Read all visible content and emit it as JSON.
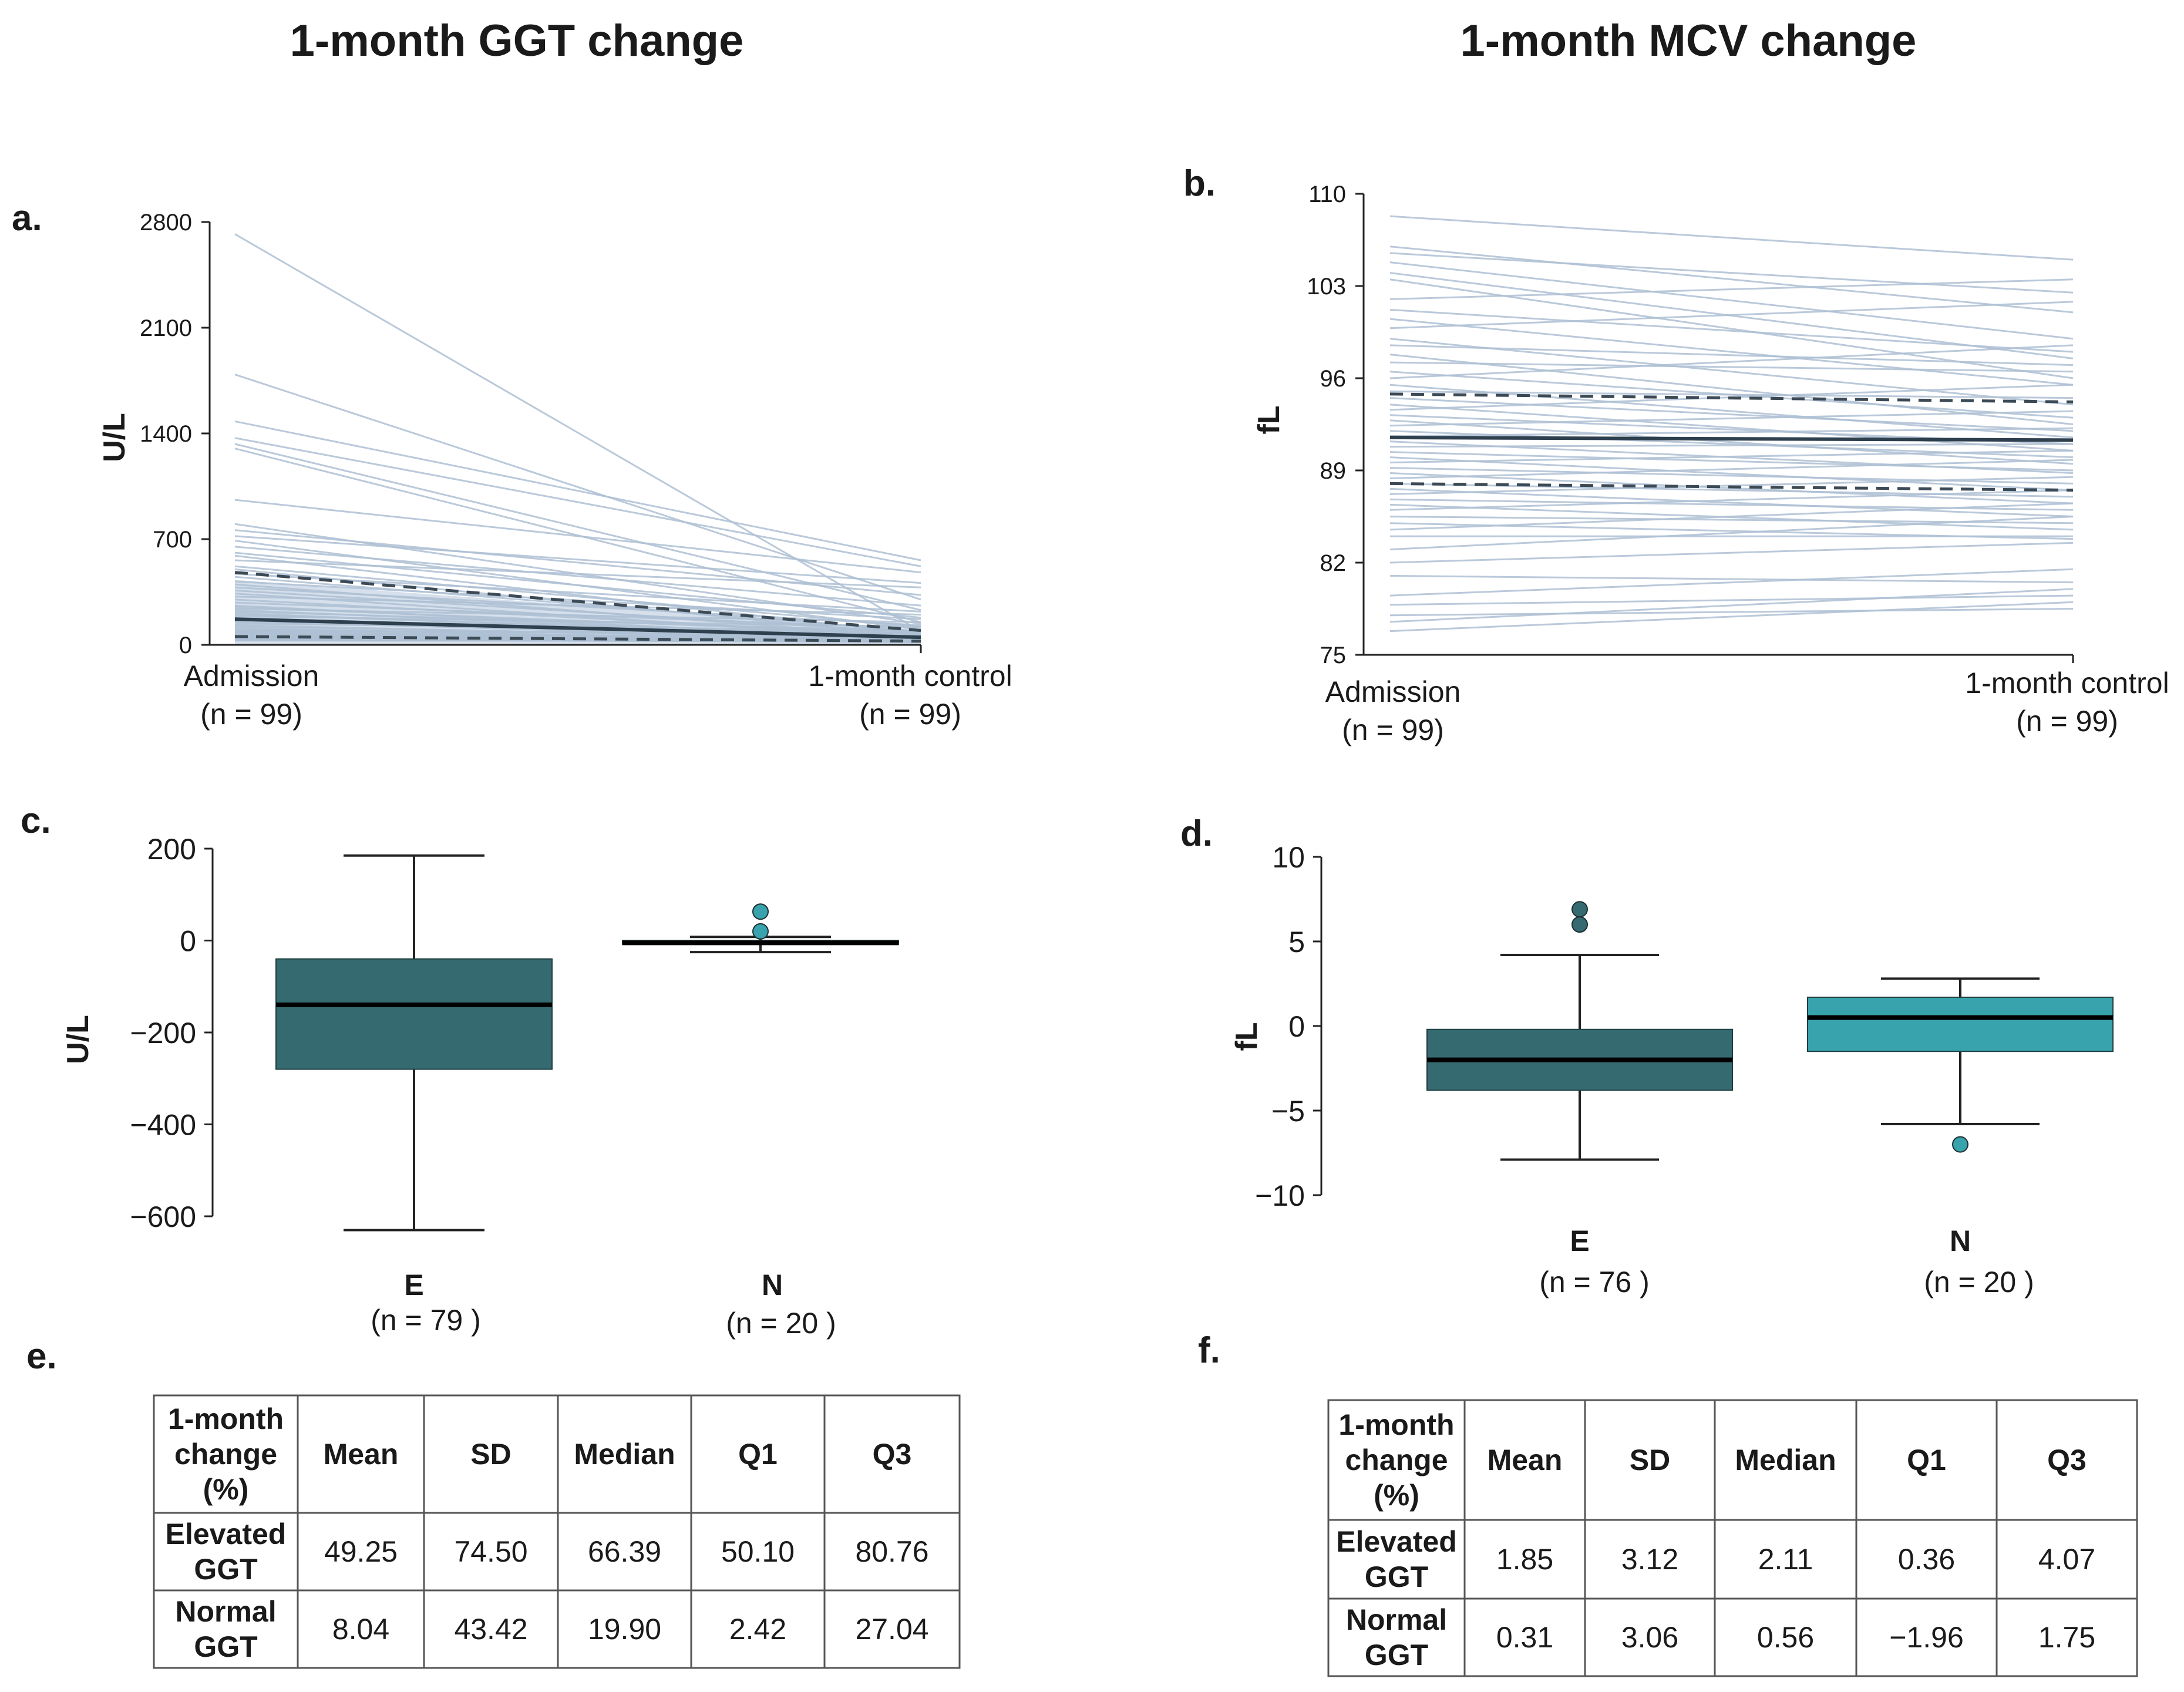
{
  "titles": {
    "left": "1-month GGT change",
    "right": "1-month MCV change"
  },
  "panels": {
    "a": "a.",
    "b": "b.",
    "c": "c.",
    "d": "d.",
    "e": "e.",
    "f": "f."
  },
  "colors": {
    "spaghetti": "#aebfd3",
    "spaghetti_fill": "#5a85b3",
    "median_line": "#2e3f4e",
    "box_elevated": "#356b70",
    "box_normal": "#38a3ad",
    "outlier_elevated": "#356b70",
    "outlier_normal": "#38a3ad"
  },
  "chart_data": [
    {
      "id": "a",
      "type": "line",
      "title": "1-month GGT change",
      "ylabel": "U/L",
      "ylim": [
        0,
        2800
      ],
      "yticks": [
        "0",
        "700",
        "1400",
        "2100",
        "2800"
      ],
      "ytick_values": [
        0,
        700,
        1400,
        2100,
        2800
      ],
      "timepoints": [
        {
          "label": "Admission",
          "n": "(n = 99)"
        },
        {
          "label": "1-month control",
          "n": "(n = 99)"
        }
      ],
      "subjects": [
        [
          2720,
          90
        ],
        [
          1790,
          300
        ],
        [
          1480,
          560
        ],
        [
          1370,
          520
        ],
        [
          1330,
          230
        ],
        [
          1300,
          150
        ],
        [
          960,
          480
        ],
        [
          800,
          140
        ],
        [
          760,
          330
        ],
        [
          720,
          410
        ],
        [
          690,
          100
        ],
        [
          650,
          260
        ],
        [
          610,
          180
        ],
        [
          590,
          70
        ],
        [
          560,
          380
        ],
        [
          520,
          120
        ],
        [
          500,
          60
        ],
        [
          470,
          220
        ],
        [
          450,
          90
        ],
        [
          420,
          170
        ],
        [
          400,
          50
        ],
        [
          380,
          130
        ],
        [
          360,
          80
        ],
        [
          340,
          40
        ],
        [
          320,
          200
        ],
        [
          300,
          60
        ],
        [
          280,
          110
        ],
        [
          260,
          35
        ],
        [
          250,
          70
        ],
        [
          240,
          150
        ],
        [
          230,
          45
        ],
        [
          220,
          90
        ],
        [
          210,
          30
        ],
        [
          200,
          60
        ],
        [
          190,
          120
        ],
        [
          180,
          40
        ],
        [
          170,
          75
        ],
        [
          160,
          25
        ],
        [
          150,
          55
        ],
        [
          140,
          95
        ],
        [
          130,
          30
        ],
        [
          120,
          45
        ],
        [
          110,
          20
        ],
        [
          100,
          60
        ],
        [
          95,
          35
        ],
        [
          90,
          80
        ],
        [
          85,
          25
        ],
        [
          80,
          45
        ],
        [
          75,
          30
        ],
        [
          70,
          55
        ],
        [
          65,
          20
        ],
        [
          60,
          40
        ],
        [
          58,
          28
        ],
        [
          55,
          50
        ],
        [
          52,
          22
        ],
        [
          50,
          35
        ],
        [
          48,
          45
        ],
        [
          45,
          18
        ],
        [
          42,
          30
        ],
        [
          40,
          38
        ],
        [
          38,
          25
        ],
        [
          36,
          32
        ],
        [
          34,
          20
        ],
        [
          32,
          28
        ],
        [
          30,
          24
        ],
        [
          28,
          30
        ]
      ],
      "median": [
        170,
        50
      ],
      "q1": [
        55,
        25
      ],
      "q3": [
        480,
        95
      ]
    },
    {
      "id": "b",
      "type": "line",
      "title": "1-month MCV change",
      "ylabel": "fL",
      "ylim": [
        75,
        110
      ],
      "yticks": [
        "75",
        "82",
        "89",
        "96",
        "103",
        "110"
      ],
      "ytick_values": [
        75,
        82,
        89,
        96,
        103,
        110
      ],
      "timepoints": [
        {
          "label": "Admission",
          "n": "(n = 99)"
        },
        {
          "label": "1-month control",
          "n": "(n = 99)"
        }
      ],
      "subjects": [
        [
          108.3,
          105.0
        ],
        [
          106.0,
          101.0
        ],
        [
          105.5,
          102.5
        ],
        [
          104.8,
          99.0
        ],
        [
          104.0,
          97.5
        ],
        [
          103.5,
          96.0
        ],
        [
          102.0,
          103.5
        ],
        [
          101.2,
          98.0
        ],
        [
          100.5,
          95.5
        ],
        [
          99.8,
          101.8
        ],
        [
          99.0,
          94.0
        ],
        [
          98.5,
          97.0
        ],
        [
          97.8,
          92.5
        ],
        [
          97.2,
          96.5
        ],
        [
          96.5,
          93.0
        ],
        [
          96.0,
          98.5
        ],
        [
          95.5,
          91.5
        ],
        [
          95.0,
          94.5
        ],
        [
          94.5,
          92.0
        ],
        [
          94.0,
          90.5
        ],
        [
          93.6,
          95.5
        ],
        [
          93.2,
          91.0
        ],
        [
          92.8,
          89.5
        ],
        [
          92.4,
          93.5
        ],
        [
          92.0,
          90.0
        ],
        [
          91.6,
          92.2
        ],
        [
          91.2,
          88.8
        ],
        [
          90.8,
          91.0
        ],
        [
          90.4,
          89.0
        ],
        [
          90.0,
          87.5
        ],
        [
          89.6,
          90.5
        ],
        [
          89.2,
          88.0
        ],
        [
          88.8,
          86.5
        ],
        [
          88.4,
          89.8
        ],
        [
          88.0,
          87.0
        ],
        [
          87.6,
          85.5
        ],
        [
          87.2,
          88.5
        ],
        [
          86.8,
          86.0
        ],
        [
          86.4,
          84.5
        ],
        [
          86.0,
          87.5
        ],
        [
          85.5,
          85.0
        ],
        [
          85.0,
          83.8
        ],
        [
          84.5,
          86.5
        ],
        [
          84.0,
          84.0
        ],
        [
          83.0,
          85.5
        ],
        [
          82.0,
          83.5
        ],
        [
          81.0,
          80.5
        ],
        [
          79.5,
          81.5
        ],
        [
          78.8,
          79.5
        ],
        [
          78.0,
          78.5
        ],
        [
          77.5,
          80.0
        ],
        [
          76.8,
          79.0
        ]
      ],
      "median": [
        91.5,
        91.3
      ],
      "q1": [
        88.0,
        87.5
      ],
      "q3": [
        94.8,
        94.2
      ]
    },
    {
      "id": "c",
      "type": "box",
      "ylabel": "U/L",
      "ylim": [
        -600,
        200
      ],
      "yticks": [
        "200",
        "0",
        "−200",
        "−400",
        "−600"
      ],
      "ytick_values": [
        200,
        0,
        -200,
        -400,
        -600
      ],
      "groups": [
        {
          "label": "E",
          "n": "(n =  79 )",
          "whisker_low": -630,
          "q1": -280,
          "median": -140,
          "q3": -40,
          "whisker_high": 185,
          "outliers": []
        },
        {
          "label": "N",
          "n": "(n =  20 )",
          "whisker_low": -25,
          "q1": -8,
          "median": -5,
          "q3": 0,
          "whisker_high": 8,
          "outliers": [
            63,
            20
          ]
        }
      ]
    },
    {
      "id": "d",
      "type": "box",
      "ylabel": "fL",
      "ylim": [
        -10,
        10
      ],
      "yticks": [
        "10",
        "5",
        "0",
        "−5",
        "−10"
      ],
      "ytick_values": [
        10,
        5,
        0,
        -5,
        -10
      ],
      "groups": [
        {
          "label": "E",
          "n": "(n =  76 )",
          "whisker_low": -7.9,
          "q1": -3.8,
          "median": -2.0,
          "q3": -0.2,
          "whisker_high": 4.2,
          "outliers": [
            6.9,
            6.0
          ]
        },
        {
          "label": "N",
          "n": "(n =  20 )",
          "whisker_low": -5.8,
          "q1": -1.5,
          "median": 0.5,
          "q3": 1.7,
          "whisker_high": 2.8,
          "outliers": [
            -7.0
          ]
        }
      ]
    }
  ],
  "tables": {
    "e": {
      "header": [
        "1-month change (%)",
        "Mean",
        "SD",
        "Median",
        "Q1",
        "Q3"
      ],
      "header_lines": [
        "1-month",
        "change",
        "(%)"
      ],
      "rows": [
        {
          "label_lines": [
            "Elevated",
            "GGT"
          ],
          "values": [
            "49.25",
            "74.50",
            "66.39",
            "50.10",
            "80.76"
          ]
        },
        {
          "label_lines": [
            "Normal",
            "GGT"
          ],
          "values": [
            "8.04",
            "43.42",
            "19.90",
            "2.42",
            "27.04"
          ]
        }
      ]
    },
    "f": {
      "header": [
        "1-month change (%)",
        "Mean",
        "SD",
        "Median",
        "Q1",
        "Q3"
      ],
      "header_lines": [
        "1-month",
        "change",
        "(%)"
      ],
      "rows": [
        {
          "label_lines": [
            "Elevated",
            "GGT"
          ],
          "values": [
            "1.85",
            "3.12",
            "2.11",
            "0.36",
            "4.07"
          ]
        },
        {
          "label_lines": [
            "Normal",
            "GGT"
          ],
          "values": [
            "0.31",
            "3.06",
            "0.56",
            "−1.96",
            "1.75"
          ]
        }
      ]
    }
  }
}
